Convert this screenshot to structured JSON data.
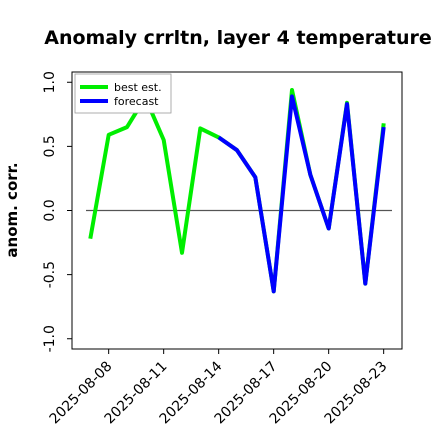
{
  "chart_data": {
    "type": "line",
    "title": "Anomaly crrltn, layer 4 temperature",
    "xlabel": "",
    "ylabel": "anom. corr.",
    "ylim": [
      -1.08,
      1.08
    ],
    "yticks": [
      -1.0,
      -0.5,
      0.0,
      0.5,
      1.0
    ],
    "ytick_labels": [
      "-1.0",
      "-0.5",
      "0.0",
      "0.5",
      "1.0"
    ],
    "xlim": [
      "2025-08-06",
      "2025-08-24"
    ],
    "xtick_labels": [
      "2025-08-08",
      "2025-08-11",
      "2025-08-14",
      "2025-08-17",
      "2025-08-20",
      "2025-08-23"
    ],
    "highlight_tick": "2025-08-14",
    "highlight_color": "#008000",
    "reference_line": 0.0,
    "grid": false,
    "legend_position": "top-left",
    "series": [
      {
        "name": "best est.",
        "color": "#00ee00",
        "x": [
          "2025-08-07",
          "2025-08-08",
          "2025-08-09",
          "2025-08-10",
          "2025-08-11",
          "2025-08-12",
          "2025-08-13",
          "2025-08-14",
          "2025-08-15",
          "2025-08-16",
          "2025-08-17",
          "2025-08-18",
          "2025-08-19",
          "2025-08-20",
          "2025-08-21",
          "2025-08-22",
          "2025-08-23"
        ],
        "values": [
          -0.22,
          0.59,
          0.65,
          0.88,
          0.55,
          -0.33,
          0.64,
          0.57,
          0.47,
          0.26,
          -0.63,
          0.94,
          0.28,
          -0.14,
          0.84,
          -0.57,
          0.68
        ]
      },
      {
        "name": "forecast",
        "color": "#0000ff",
        "x": [
          "2025-08-14",
          "2025-08-15",
          "2025-08-16",
          "2025-08-17",
          "2025-08-18",
          "2025-08-19",
          "2025-08-20",
          "2025-08-21",
          "2025-08-22",
          "2025-08-23"
        ],
        "values": [
          0.57,
          0.47,
          0.26,
          -0.63,
          0.89,
          0.28,
          -0.14,
          0.83,
          -0.57,
          0.65
        ]
      }
    ]
  }
}
